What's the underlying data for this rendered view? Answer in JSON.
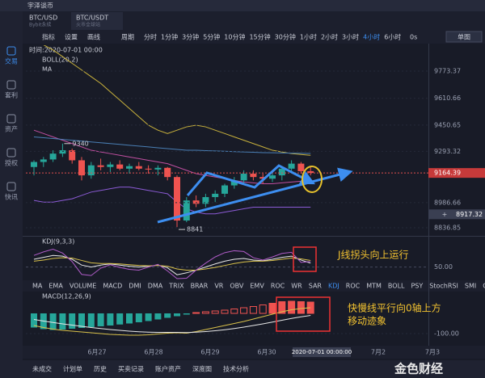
{
  "app_title": "宇泽谈币",
  "sidebar": [
    "交易",
    "套利",
    "资产",
    "授权",
    "快讯"
  ],
  "tabs": [
    {
      "pair": "BTC/USD",
      "exchange": "Bybit永续"
    },
    {
      "pair": "BTC/USDT",
      "exchange": "火币全球站"
    }
  ],
  "toolbar": {
    "tools": [
      "指标",
      "设置",
      "画线"
    ],
    "period_label": "周期",
    "periods": [
      "分时",
      "1分钟",
      "3分钟",
      "5分钟",
      "10分钟",
      "15分钟",
      "30分钟",
      "1小时",
      "2小时",
      "3小时",
      "4小时",
      "6小时"
    ],
    "active_period": 10,
    "timer": "0s",
    "layout": "单图"
  },
  "indicator_tabs": [
    "MA",
    "EMA",
    "VOLUME",
    "MACD",
    "DMI",
    "DMA",
    "TRIX",
    "BRAR",
    "VR",
    "OBV",
    "EMV",
    "ROC",
    "WR",
    "SAR",
    "KDJ",
    "ROC",
    "MTM",
    "BOLL",
    "PSY",
    "StochRSI",
    "SMI",
    "CCI"
  ],
  "active_indicator": 14,
  "bottom_tabs": [
    "未成交",
    "计划单",
    "历史",
    "买卖记录",
    "账户资产",
    "深度图",
    "技术分析"
  ],
  "watermark": "金色财经",
  "chart_data": {
    "type": "candlestick",
    "time_label": "时间:2020-07-01 00:00",
    "overlays": [
      "BOLL(20,2)",
      "MA"
    ],
    "up_color": "#26a69a",
    "down_color": "#ef5350",
    "candles": [
      [
        9200,
        9240,
        9150,
        9230
      ],
      [
        9230,
        9260,
        9200,
        9245
      ],
      [
        9245,
        9300,
        9230,
        9280
      ],
      [
        9280,
        9340,
        9260,
        9300
      ],
      [
        9300,
        9310,
        9220,
        9240
      ],
      [
        9240,
        9260,
        9120,
        9150
      ],
      [
        9150,
        9230,
        9130,
        9210
      ],
      [
        9210,
        9250,
        9180,
        9200
      ],
      [
        9200,
        9230,
        9170,
        9215
      ],
      [
        9215,
        9240,
        9180,
        9190
      ],
      [
        9190,
        9220,
        9160,
        9205
      ],
      [
        9205,
        9230,
        9180,
        9190
      ],
      [
        9190,
        9210,
        9160,
        9185
      ],
      [
        9185,
        9210,
        9150,
        9195
      ],
      [
        9195,
        9200,
        9120,
        9140
      ],
      [
        9140,
        9150,
        8841,
        8880
      ],
      [
        8880,
        9020,
        8870,
        9000
      ],
      [
        9000,
        9030,
        8960,
        8980
      ],
      [
        8980,
        9040,
        8960,
        9020
      ],
      [
        9020,
        9060,
        8990,
        9040
      ],
      [
        9040,
        9100,
        9020,
        9090
      ],
      [
        9090,
        9140,
        9070,
        9120
      ],
      [
        9120,
        9180,
        9100,
        9160
      ],
      [
        9160,
        9180,
        9120,
        9140
      ],
      [
        9140,
        9160,
        9100,
        9130
      ],
      [
        9130,
        9160,
        9110,
        9150
      ],
      [
        9150,
        9200,
        9120,
        9190
      ],
      [
        9190,
        9240,
        9170,
        9220
      ],
      [
        9220,
        9230,
        9160,
        9175
      ],
      [
        9175,
        9200,
        9150,
        9164.39
      ]
    ],
    "lines": [
      {
        "color": "#c9b23c",
        "values": [
          9950,
          9930,
          9900,
          9860,
          9820,
          9780,
          9740,
          9700,
          9650,
          9600,
          9550,
          9500,
          9450,
          9420,
          9400,
          9420,
          9440,
          9450,
          9440,
          9420,
          9400,
          9380,
          9360,
          9340,
          9320,
          9300,
          9290,
          9280,
          9275,
          9270
        ]
      },
      {
        "color": "#c04fa0",
        "values": [
          9420,
          9400,
          9380,
          9360,
          9340,
          9320,
          9300,
          9290,
          9280,
          9270,
          9260,
          9250,
          9240,
          9230,
          9220,
          9200,
          9180,
          9160,
          9150,
          9140,
          9130,
          9120,
          9110,
          9105,
          9100,
          9100,
          9105,
          9110,
          9115,
          9120
        ]
      },
      {
        "color": "#8c5bd6",
        "values": [
          9000,
          8990,
          8990,
          9000,
          9010,
          9030,
          9050,
          9060,
          9070,
          9080,
          9080,
          9070,
          9060,
          9050,
          9040,
          8990,
          8950,
          8930,
          8920,
          8920,
          8930,
          8940,
          8950,
          8960,
          8960,
          8960,
          8960,
          8960,
          8960,
          8960
        ]
      },
      {
        "color": "#4a7fb5",
        "values": [
          9380,
          9375,
          9370,
          9365,
          9360,
          9355,
          9350,
          9345,
          9340,
          9335,
          9330,
          9325,
          9320,
          9315,
          9310,
          9305,
          9300,
          9300,
          9298,
          9296,
          9294,
          9292,
          9290,
          9288,
          9286,
          9285,
          9284,
          9283,
          9282,
          9281
        ]
      }
    ],
    "ylim": [
      8798,
      9928
    ],
    "yticks": [
      9773.37,
      9610.66,
      9450.65,
      9293.32,
      8986.66,
      8836.85
    ],
    "cursor_price": 8917.32,
    "dates": [
      "6月27",
      "6月28",
      "6月29",
      "6月30",
      "7月2",
      "7月3"
    ],
    "cursor_time": "2020-07-01 00:00:00",
    "kdj": {
      "title": "KDJ(9,3,3)",
      "ylim": [
        20,
        120
      ],
      "yticks": [
        {
          "value": 50,
          "label": "50.00"
        }
      ],
      "lines": [
        {
          "color": "#e8e8e8",
          "values": [
            70,
            75,
            80,
            78,
            70,
            55,
            50,
            55,
            58,
            55,
            52,
            50,
            52,
            55,
            48,
            30,
            35,
            42,
            50,
            58,
            65,
            70,
            72,
            68,
            66,
            70,
            75,
            78,
            68,
            60
          ]
        },
        {
          "color": "#d9c14a",
          "values": [
            65,
            68,
            72,
            74,
            73,
            67,
            61,
            59,
            59,
            58,
            56,
            54,
            53,
            54,
            52,
            45,
            42,
            42,
            45,
            49,
            54,
            59,
            63,
            65,
            65,
            67,
            70,
            73,
            71,
            67
          ]
        },
        {
          "color": "#b05cc8",
          "values": [
            80,
            89,
            96,
            86,
            64,
            31,
            28,
            47,
            56,
            49,
            44,
            42,
            50,
            57,
            40,
            20,
            21,
            42,
            60,
            76,
            87,
            92,
            90,
            74,
            68,
            76,
            85,
            88,
            62,
            64
          ]
        }
      ]
    },
    "macd": {
      "title": "MACD(12,26,9)",
      "ylim": [
        -128,
        104
      ],
      "yticks": [
        {
          "value": -100,
          "label": "-100.00"
        }
      ],
      "hist": [
        -70,
        -78,
        -82,
        -80,
        -76,
        -72,
        -68,
        -64,
        -60,
        -55,
        -50,
        -44,
        -38,
        -30,
        -22,
        -14,
        -6,
        4,
        8,
        12,
        16,
        22,
        28,
        34,
        42,
        50,
        58,
        60,
        58,
        56
      ],
      "lines": [
        {
          "color": "#d9c14a",
          "values": [
            -60,
            -70,
            -78,
            -84,
            -88,
            -92,
            -96,
            -100,
            -104,
            -106,
            -108,
            -108,
            -106,
            -102,
            -98,
            -96,
            -98,
            -90,
            -80,
            -70,
            -60,
            -50,
            -40,
            -28,
            -16,
            -4,
            8,
            18,
            24,
            28
          ]
        },
        {
          "color": "#e8e8e8",
          "values": [
            -30,
            -38,
            -45,
            -52,
            -58,
            -64,
            -70,
            -75,
            -80,
            -84,
            -88,
            -91,
            -93,
            -94,
            -94,
            -94,
            -95,
            -93,
            -90,
            -86,
            -81,
            -75,
            -68,
            -60,
            -52,
            -43,
            -34,
            -25,
            -17,
            -10
          ]
        }
      ]
    },
    "notes": [
      "J线拐头向上运行",
      "快慢线平行向0轴上方",
      "移动迹象"
    ]
  }
}
